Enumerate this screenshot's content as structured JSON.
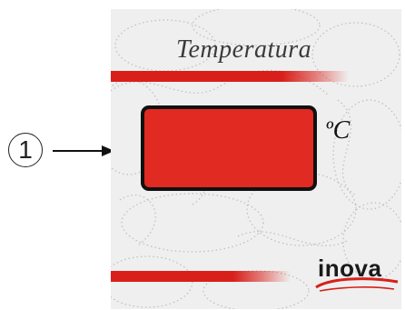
{
  "callout": {
    "number": "1"
  },
  "panel": {
    "title": "Temperatura",
    "unit": "ºC",
    "brand": "inova"
  },
  "colors": {
    "accent_red": "#d81f1a",
    "display_red": "#e02a22",
    "panel_background": "#efefef",
    "outline": "#111111"
  },
  "icons": {
    "pointer": "arrow-right-icon",
    "logo_mark": "swoosh-icon"
  }
}
